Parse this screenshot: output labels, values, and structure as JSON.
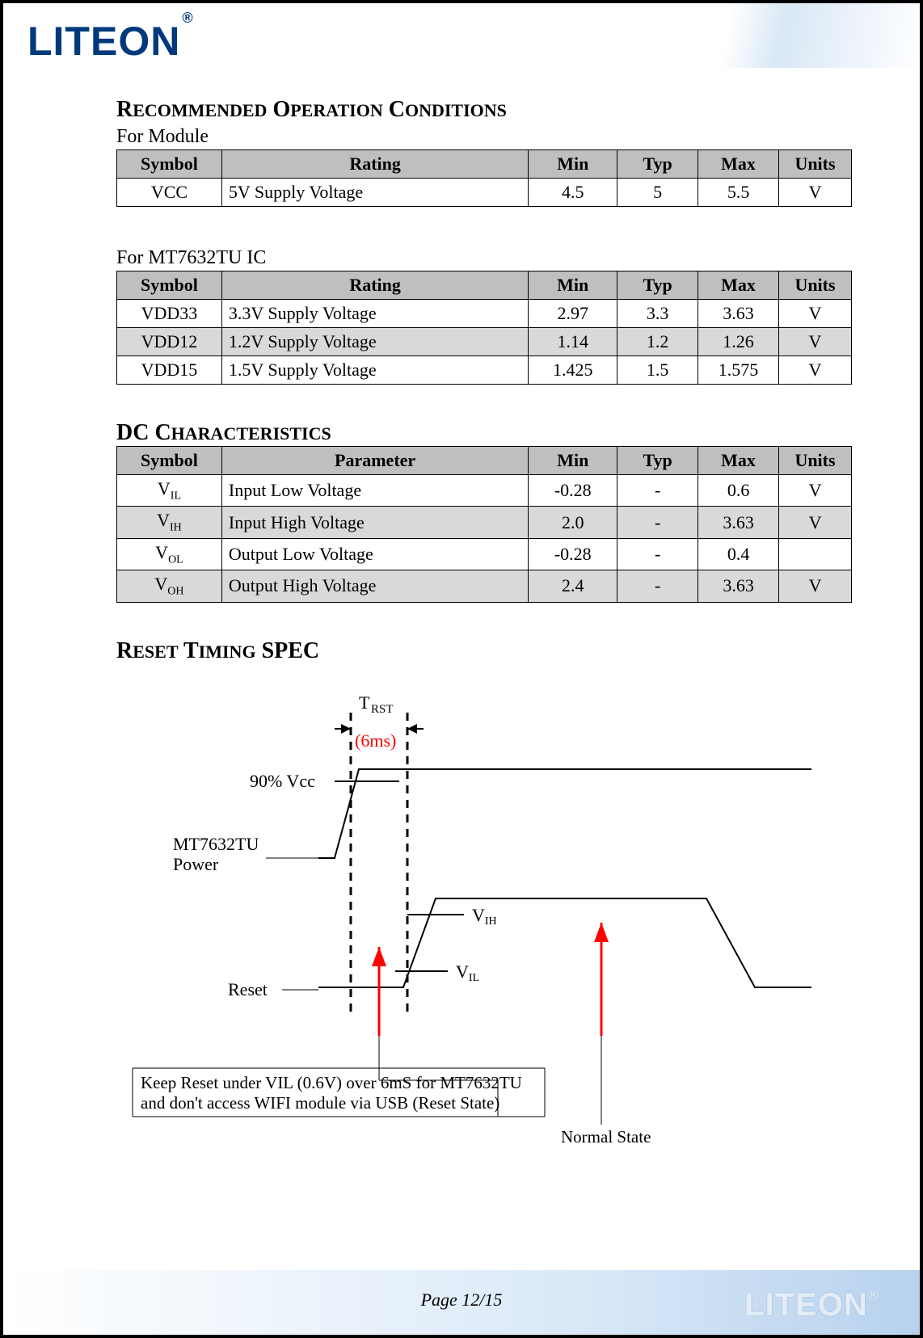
{
  "brand": {
    "logo_text": "LITEON",
    "logo_sup": "®"
  },
  "section1": {
    "title": "RECOMMENDED OPERATION CONDITIONS",
    "sub1_label": "For Module",
    "table1": {
      "headers": [
        "Symbol",
        "Rating",
        "Min",
        "Typ",
        "Max",
        "Units"
      ],
      "rows": [
        {
          "symbol": "VCC",
          "rating": "5V Supply Voltage",
          "min": "4.5",
          "typ": "5",
          "max": "5.5",
          "units": "V",
          "alt": false
        }
      ]
    },
    "sub2_label": "For MT7632TU IC",
    "table2": {
      "headers": [
        "Symbol",
        "Rating",
        "Min",
        "Typ",
        "Max",
        "Units"
      ],
      "rows": [
        {
          "symbol": "VDD33",
          "rating": "3.3V Supply Voltage",
          "min": "2.97",
          "typ": "3.3",
          "max": "3.63",
          "units": "V",
          "alt": false
        },
        {
          "symbol": "VDD12",
          "rating": "1.2V Supply Voltage",
          "min": "1.14",
          "typ": "1.2",
          "max": "1.26",
          "units": "V",
          "alt": true
        },
        {
          "symbol": "VDD15",
          "rating": "1.5V Supply Voltage",
          "min": "1.425",
          "typ": "1.5",
          "max": "1.575",
          "units": "V",
          "alt": false
        }
      ]
    }
  },
  "section2": {
    "title": "DC CHARACTERISTICS",
    "table": {
      "headers": [
        "Symbol",
        "Parameter",
        "Min",
        "Typ",
        "Max",
        "Units"
      ],
      "rows": [
        {
          "symbol": "V",
          "sub": "IL",
          "param": "Input Low Voltage",
          "min": "-0.28",
          "typ": "-",
          "max": "0.6",
          "units": "V",
          "alt": false
        },
        {
          "symbol": "V",
          "sub": "IH",
          "param": "Input High Voltage",
          "min": "2.0",
          "typ": "-",
          "max": "3.63",
          "units": "V",
          "alt": true
        },
        {
          "symbol": "V",
          "sub": "OL",
          "param": "Output Low Voltage",
          "min": "-0.28",
          "typ": "-",
          "max": "0.4",
          "units": "",
          "alt": false
        },
        {
          "symbol": "V",
          "sub": "OH",
          "param": "Output High Voltage",
          "min": "2.4",
          "typ": "-",
          "max": "3.63",
          "units": "V",
          "alt": true
        }
      ]
    }
  },
  "section3": {
    "title": "RESET TIMING SPEC"
  },
  "diagram": {
    "labels": {
      "trst": "T RST",
      "trst_val": "(6ms)",
      "vcc90": "90% Vcc",
      "power": "MT7632TU Power",
      "vih": "VIH",
      "vil": "VIL",
      "reset": "Reset",
      "note1": "Keep Reset under VIL (0.6V) over 6mS for MT7632TU",
      "note2": "and don't access WIFI module via USB (Reset State)",
      "normal": "Normal State"
    },
    "colors": {
      "arrow": "#ff0000",
      "line": "#000000",
      "note": "#000000",
      "trst_val": "#ff0000"
    },
    "stroke_width": 2
  },
  "footer": {
    "page": "Page 12/15"
  }
}
